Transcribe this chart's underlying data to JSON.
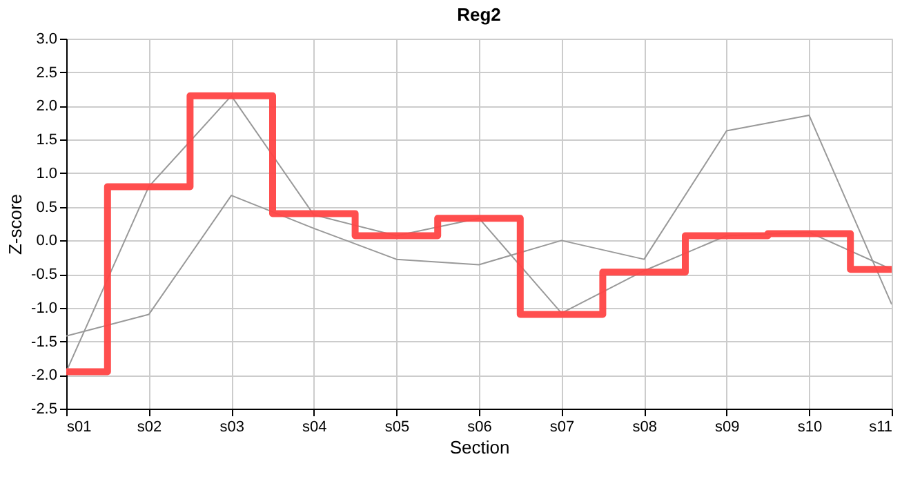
{
  "chart_data": {
    "type": "line",
    "title": "Reg2",
    "xlabel": "Section",
    "ylabel": "Z-score",
    "categories": [
      "s01",
      "s02",
      "s03",
      "s04",
      "s05",
      "s06",
      "s07",
      "s08",
      "s09",
      "s10",
      "s11"
    ],
    "series": [
      {
        "color": "#999999",
        "values": [
          -1.95,
          0.8,
          2.15,
          0.38,
          0.07,
          0.33,
          -1.08,
          -0.45,
          0.07,
          0.12,
          -0.43
        ]
      },
      {
        "color": "#999999",
        "values": [
          -1.42,
          -1.1,
          0.67,
          0.18,
          -0.28,
          -0.36,
          0.0,
          -0.28,
          1.63,
          1.86,
          -0.95
        ]
      },
      {
        "type": "step",
        "color": "#ff4444",
        "values": [
          -1.95,
          0.8,
          2.15,
          0.4,
          0.07,
          0.33,
          -1.1,
          -0.47,
          0.07,
          0.1,
          -0.43
        ]
      }
    ],
    "ylim": [
      -2.5,
      3.0
    ],
    "yticks": [
      -2.5,
      {
        "value": -2,
        "label": "-2.0"
      },
      -1.5,
      {
        "value": -1,
        "label": "-1.0"
      },
      -0.5,
      {
        "value": 0,
        "label": "0.0"
      },
      0.5,
      {
        "value": 1,
        "label": "1.0"
      },
      1.5,
      {
        "value": 2,
        "label": "2.0"
      },
      2.5,
      {
        "value": 3,
        "label": "3.0"
      }
    ],
    "grid": true
  }
}
